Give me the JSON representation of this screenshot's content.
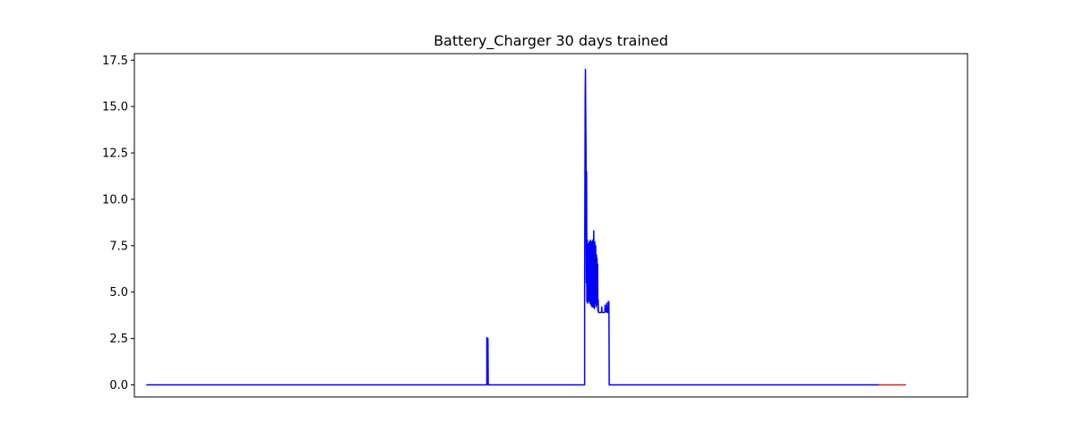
{
  "chart_data": {
    "type": "line",
    "title": "Battery_Charger 30 days trained",
    "xlabel": "",
    "ylabel": "",
    "x_ticks_shown": false,
    "xlim": [
      -43,
      2973
    ],
    "ylim": [
      -0.65,
      17.85
    ],
    "yticks": [
      0.0,
      2.5,
      5.0,
      7.5,
      10.0,
      12.5,
      15.0,
      17.5
    ],
    "ytick_labels": [
      "0.0",
      "2.5",
      "5.0",
      "7.5",
      "10.0",
      "12.5",
      "15.0",
      "17.5"
    ],
    "grid": false,
    "series": [
      {
        "color": "#0000ff",
        "points": [
          [
            0,
            0
          ],
          [
            1233,
            0
          ],
          [
            1233,
            2.55
          ],
          [
            1235,
            0.05
          ],
          [
            1237,
            2.5
          ],
          [
            1238,
            0
          ],
          [
            1587,
            0
          ],
          [
            1587,
            4.8
          ],
          [
            1589,
            15.6
          ],
          [
            1590,
            17.0
          ],
          [
            1591,
            14.5
          ],
          [
            1592,
            12.5
          ],
          [
            1593,
            5.5
          ],
          [
            1594,
            11.5
          ],
          [
            1595,
            4.5
          ],
          [
            1597,
            7.8
          ],
          [
            1598,
            4.4
          ],
          [
            1600,
            7.6
          ],
          [
            1602,
            4.5
          ],
          [
            1604,
            7.7
          ],
          [
            1606,
            4.4
          ],
          [
            1608,
            7.8
          ],
          [
            1610,
            4.3
          ],
          [
            1612,
            7.7
          ],
          [
            1614,
            4.2
          ],
          [
            1616,
            7.8
          ],
          [
            1618,
            4.2
          ],
          [
            1620,
            8.3
          ],
          [
            1622,
            4.1
          ],
          [
            1624,
            7.7
          ],
          [
            1625,
            4.4
          ],
          [
            1627,
            7.5
          ],
          [
            1628,
            4.2
          ],
          [
            1630,
            7.0
          ],
          [
            1631,
            4.5
          ],
          [
            1632,
            6.8
          ],
          [
            1633,
            4.3
          ],
          [
            1634,
            6.5
          ],
          [
            1635,
            4.0
          ],
          [
            1636,
            4.6
          ],
          [
            1637,
            3.9
          ],
          [
            1648,
            3.9
          ],
          [
            1649,
            4.2
          ],
          [
            1650,
            3.9
          ],
          [
            1660,
            3.9
          ],
          [
            1661,
            4.3
          ],
          [
            1662,
            3.95
          ],
          [
            1666,
            3.95
          ],
          [
            1667,
            4.4
          ],
          [
            1668,
            3.9
          ],
          [
            1672,
            3.9
          ],
          [
            1673,
            4.5
          ],
          [
            1674,
            4.2
          ],
          [
            1675,
            4.45
          ],
          [
            1676,
            0
          ],
          [
            2655,
            0
          ]
        ]
      },
      {
        "color": "#e31a1c",
        "points": [
          [
            2650,
            0
          ],
          [
            2750,
            0
          ]
        ]
      }
    ]
  }
}
